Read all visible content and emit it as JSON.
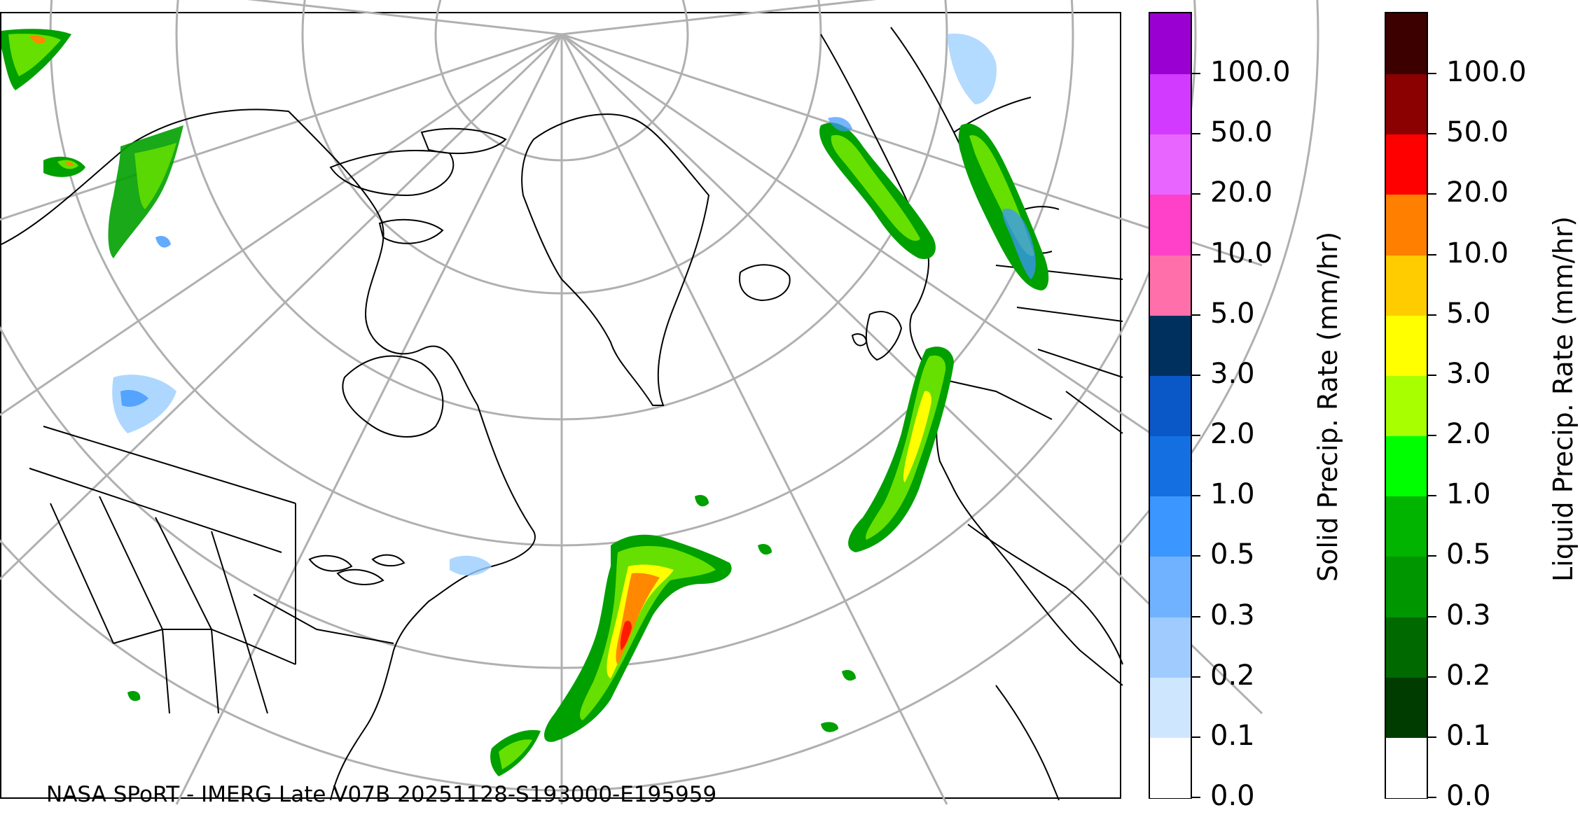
{
  "map": {
    "caption": "NASA SPoRT - IMERG Late V07B 20251128-S193000-E195959",
    "precip_colors": {
      "liquid_light": "#66e000",
      "liquid_mid": "#00a000",
      "liquid_dark": "#005f00",
      "moderate": "#ffff00",
      "heavy": "#ff8800",
      "intense": "#ff0000",
      "snow_light": "#9acdff",
      "snow": "#3c96ff"
    },
    "graticule_color": "#b0b0b0",
    "boundary_color": "#000000"
  },
  "solid_colorbar": {
    "title": "Solid Precip. Rate (mm/hr)",
    "ticks": [
      "0.0",
      "0.1",
      "0.2",
      "0.3",
      "0.5",
      "1.0",
      "2.0",
      "3.0",
      "5.0",
      "10.0",
      "20.0",
      "50.0",
      "100.0"
    ],
    "colors": [
      "#ffffff",
      "#cfe6ff",
      "#9fcbff",
      "#70b2ff",
      "#3b96ff",
      "#1470e0",
      "#0a58c8",
      "#00305e",
      "#ff70ab",
      "#ff40c8",
      "#e865ff",
      "#d23bff",
      "#9b00d2"
    ]
  },
  "liquid_colorbar": {
    "title": "Liquid Precip. Rate (mm/hr)",
    "ticks": [
      "0.0",
      "0.1",
      "0.2",
      "0.3",
      "0.5",
      "1.0",
      "2.0",
      "3.0",
      "5.0",
      "10.0",
      "20.0",
      "50.0",
      "100.0"
    ],
    "colors": [
      "#ffffff",
      "#003c00",
      "#006a00",
      "#009600",
      "#00b400",
      "#00ff00",
      "#a8ff00",
      "#ffff00",
      "#ffcc00",
      "#ff7f00",
      "#ff0000",
      "#8b0000",
      "#3c0000"
    ]
  }
}
